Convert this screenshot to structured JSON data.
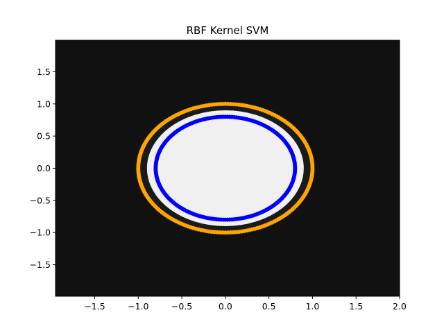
{
  "chart_data": {
    "type": "scatter",
    "title": "RBF Kernel SVM",
    "xlabel": "",
    "ylabel": "",
    "xlim": [
      -1.95,
      2.0
    ],
    "ylim": [
      -1.99,
      1.99
    ],
    "x_ticks": [
      -1.5,
      -1.0,
      -0.5,
      0.0,
      0.5,
      1.0,
      1.5,
      2.0
    ],
    "x_tick_labels": [
      "−1.5",
      "−1.0",
      "−0.5",
      "0.0",
      "0.5",
      "1.0",
      "1.5",
      "2.0"
    ],
    "y_ticks": [
      -1.5,
      -1.0,
      -0.5,
      0.0,
      0.5,
      1.0,
      1.5
    ],
    "y_tick_labels": [
      "−1.5",
      "−1.0",
      "−0.5",
      "0.0",
      "0.5",
      "1.0",
      "1.5"
    ],
    "grid": false,
    "decision_regions": [
      {
        "class": "outer",
        "color": "#111111",
        "description": "background region"
      },
      {
        "class": "margin",
        "color": "#1a1a1a",
        "radius": 1.02
      },
      {
        "class": "inner",
        "color": "#f0f0f0",
        "radius": 0.9
      }
    ],
    "series": [
      {
        "color": "#ffa500",
        "shape": "circle",
        "radius": 1.0,
        "n_points": 200
      },
      {
        "color": "#0000ff",
        "shape": "circle",
        "radius": 0.8,
        "n_points": 200
      }
    ]
  }
}
